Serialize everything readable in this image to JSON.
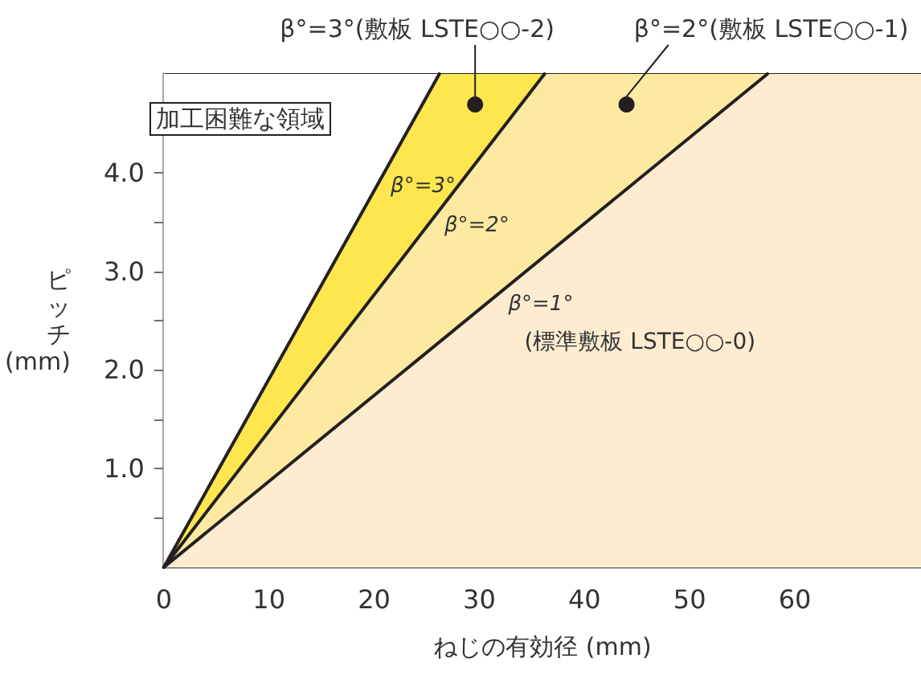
{
  "chart_data": {
    "type": "area",
    "xlabel": "ねじの有効径 (mm)",
    "ylabel": "ピッチ (mm)",
    "xlim": [
      0,
      72
    ],
    "xticks": [
      0,
      10,
      20,
      30,
      40,
      50,
      60
    ],
    "ylim": [
      0,
      5
    ],
    "yticks": [
      {
        "value": 0.5,
        "label": null
      },
      {
        "value": 1,
        "label": "1.0"
      },
      {
        "value": 1.5,
        "label": null
      },
      {
        "value": 2,
        "label": "2.0"
      },
      {
        "value": 2.5,
        "label": null
      },
      {
        "value": 3,
        "label": "3.0"
      },
      {
        "value": 3.5,
        "label": null
      },
      {
        "value": 4,
        "label": "4.0"
      }
    ],
    "series": [
      {
        "name": "β°=1°",
        "color": "#fee9a0",
        "x": [
          0,
          57.4
        ],
        "values": [
          0,
          5
        ]
      },
      {
        "name": "β°=2°",
        "color": "#fde64e",
        "x": [
          0,
          36.2
        ],
        "values": [
          0,
          5
        ]
      },
      {
        "name": "β°=3°",
        "color": "#ffffff",
        "x": [
          0,
          26.2
        ],
        "values": [
          0,
          5
        ]
      }
    ],
    "bands": [
      {
        "axis": "y",
        "from": 0,
        "to": 5,
        "color": "#feecd0"
      }
    ],
    "annotations": [
      {
        "text": "β°=3°(敷板 LSTE○○-2)",
        "x": 29.6,
        "y": 4.69
      },
      {
        "text": "β°=2°(敷板 LSTE○○-1)",
        "x": 44.0,
        "y": 4.69
      },
      "(標準敷板 LSTE○○-0)",
      "加工困難な領域"
    ],
    "legend": false,
    "marker": "none",
    "line_style": "solid"
  }
}
